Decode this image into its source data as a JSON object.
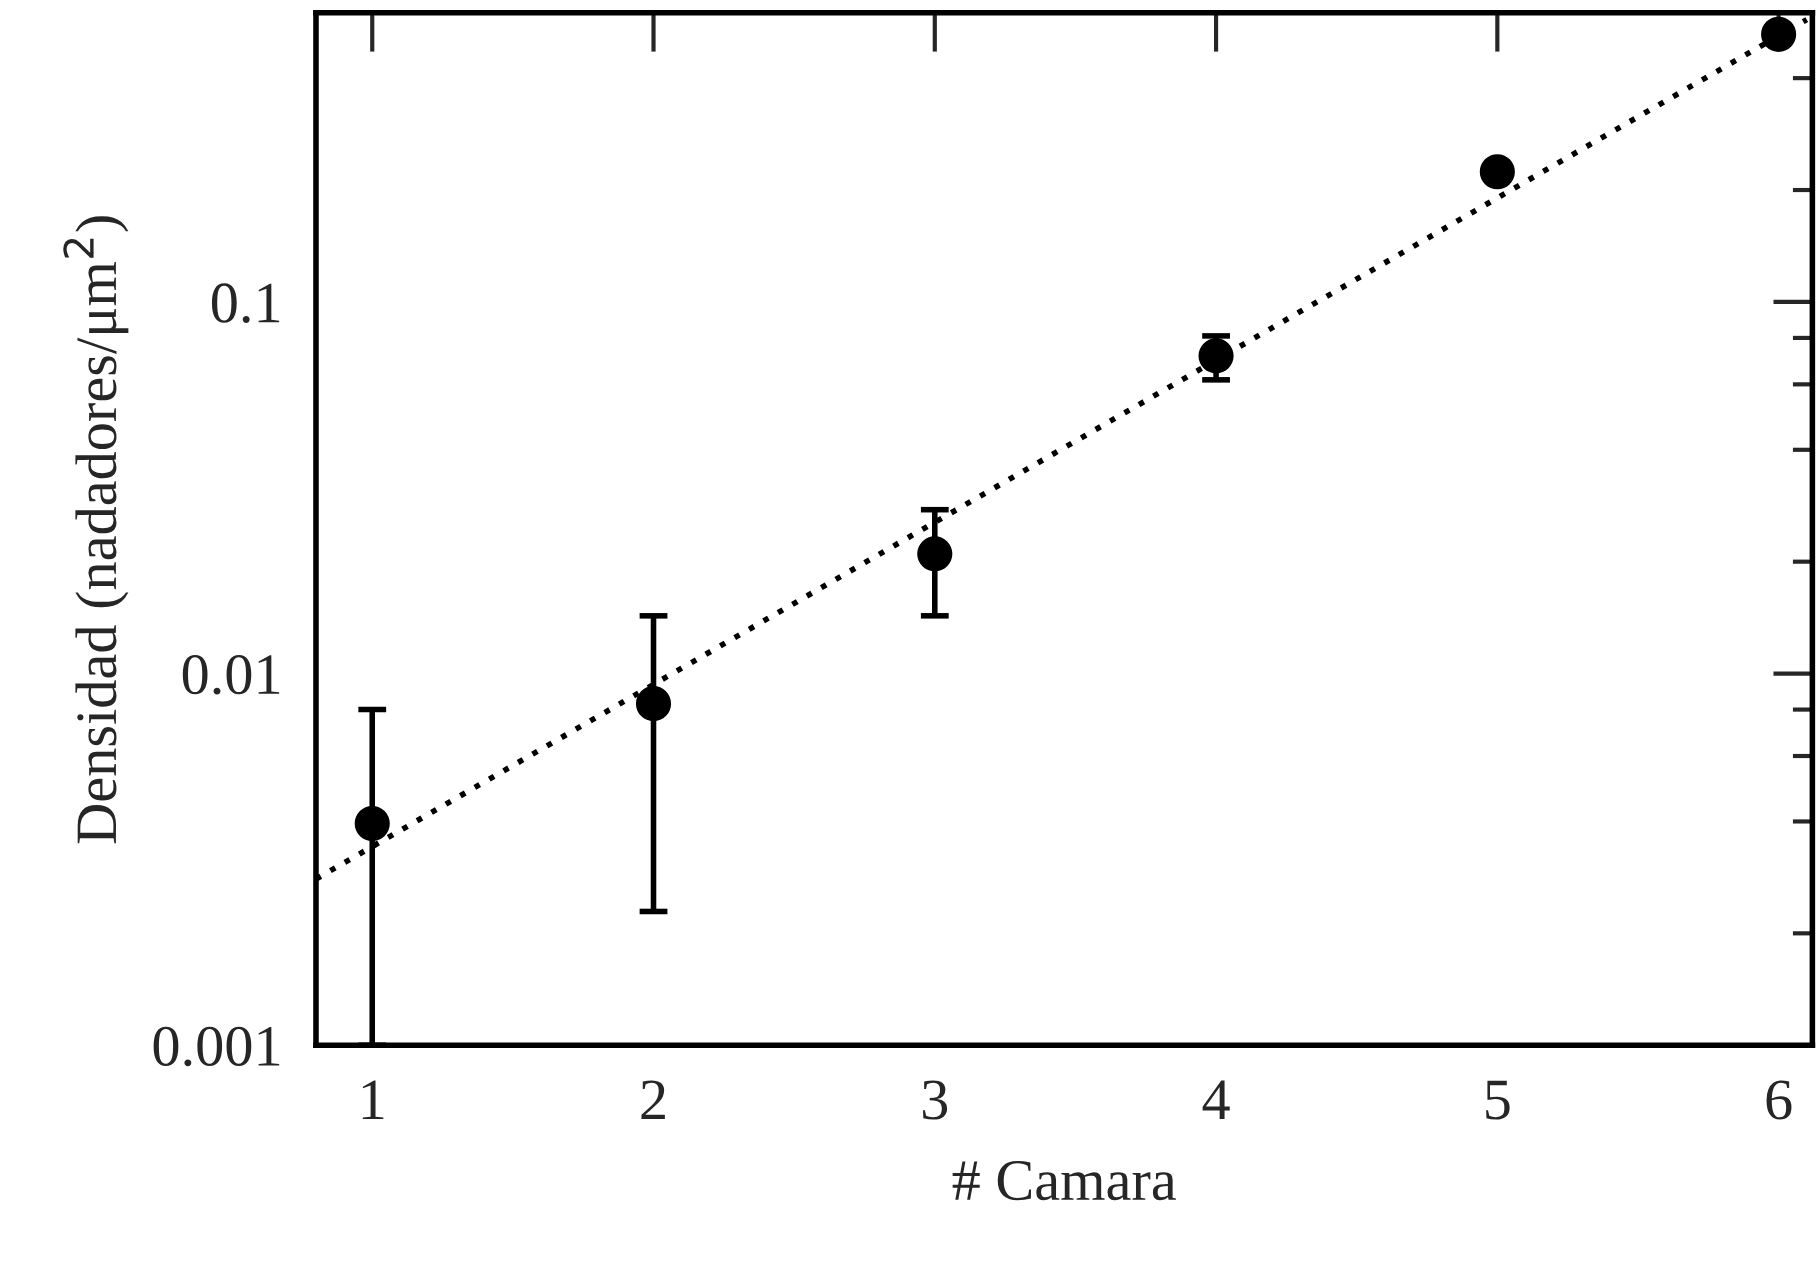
{
  "chart_data": {
    "type": "scatter",
    "xlabel": "# Camara",
    "ylabel": "Densidad (nadadores/μm$^{2}$)",
    "log": "y",
    "xlim": [
      0.8,
      6.12
    ],
    "ylim": [
      0.001,
      0.6
    ],
    "xticks": [
      1,
      2,
      3,
      4,
      5,
      6
    ],
    "yticks": [
      {
        "value": 0.001,
        "label": "0.001"
      },
      {
        "value": 0.002,
        "label": null
      },
      {
        "value": 0.004,
        "label": null
      },
      {
        "value": 0.006,
        "label": null
      },
      {
        "value": 0.008,
        "label": null
      },
      {
        "value": 0.01,
        "label": "0.01"
      },
      {
        "value": 0.02,
        "label": null
      },
      {
        "value": 0.04,
        "label": null
      },
      {
        "value": 0.06,
        "label": null
      },
      {
        "value": 0.08,
        "label": null
      },
      {
        "value": 0.1,
        "label": "0.1"
      },
      {
        "value": 0.2,
        "label": null
      },
      {
        "value": 0.4,
        "label": null
      }
    ],
    "grid": false,
    "legend": false,
    "series": [
      {
        "color": "#000000",
        "marker": "circle",
        "x": [
          1,
          2,
          3,
          4,
          5,
          6
        ],
        "values": [
          0.00395,
          0.0083,
          0.021,
          0.0716,
          0.224,
          0.525
        ],
        "errors": [
          [
            0.001,
            0.008
          ],
          [
            0.00229,
            0.0143
          ],
          [
            0.0143,
            0.0276
          ],
          [
            0.0617,
            0.081
          ],
          null,
          null
        ]
      },
      {
        "type": "line",
        "color": "#000000",
        "marker": "none",
        "line_style": "dotted",
        "x": [
          0.8,
          6.1
        ],
        "values": [
          0.0028,
          0.575
        ]
      }
    ]
  }
}
